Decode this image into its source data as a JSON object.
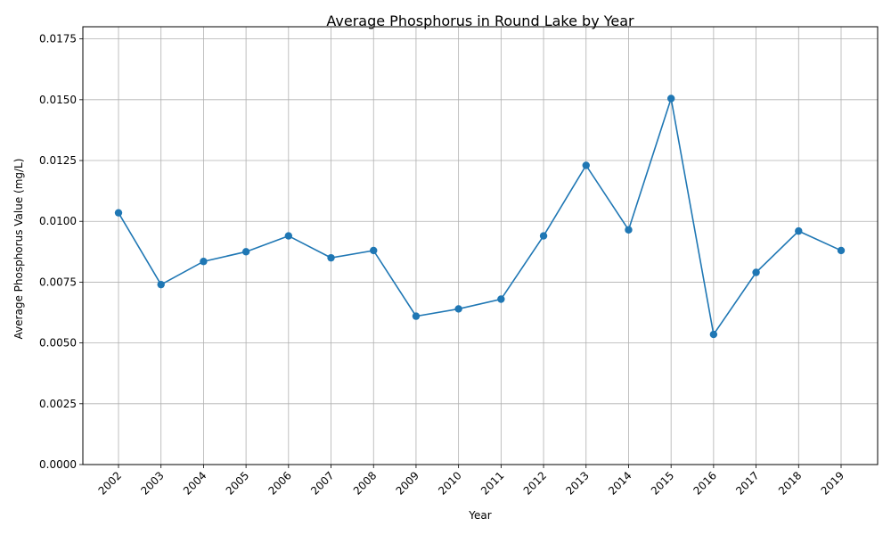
{
  "chart_data": {
    "type": "line",
    "title": "Average Phosphorus in Round Lake by Year",
    "xlabel": "Year",
    "ylabel": "Average Phosphorus Value (mg/L)",
    "ylim": [
      0,
      0.018
    ],
    "yticks": [
      "0.0000",
      "0.0025",
      "0.0050",
      "0.0075",
      "0.0100",
      "0.0125",
      "0.0150",
      "0.0175"
    ],
    "grid": true,
    "marker": "circle",
    "color": "#1f77b4",
    "x": [
      "2002",
      "2003",
      "2004",
      "2005",
      "2006",
      "2007",
      "2008",
      "2009",
      "2010",
      "2011",
      "2012",
      "2013",
      "2014",
      "2015",
      "2016",
      "2017",
      "2018",
      "2019"
    ],
    "values": [
      0.01035,
      0.0074,
      0.00835,
      0.00875,
      0.0094,
      0.0085,
      0.0088,
      0.0061,
      0.0064,
      0.0068,
      0.0094,
      0.0123,
      0.00965,
      0.01505,
      0.00535,
      0.0079,
      0.0096,
      0.0088
    ]
  }
}
